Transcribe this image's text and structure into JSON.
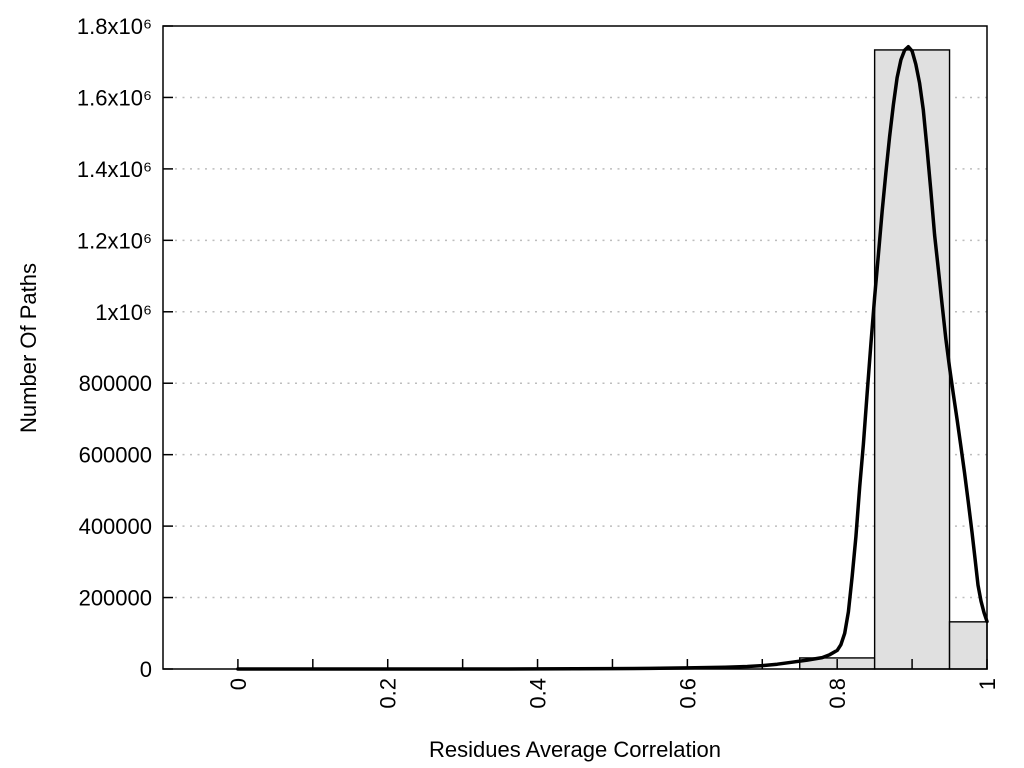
{
  "chart_data": {
    "type": "bar",
    "subtype": "histogram-with-smooth-curve",
    "title": "",
    "xlabel": "Residues Average Correlation",
    "ylabel": "Number Of Paths",
    "xlim": [
      -0.1,
      1.0
    ],
    "ylim": [
      0,
      1800000
    ],
    "grid": "horizontal-dotted",
    "legend": "none",
    "colors": {
      "background": "#ffffff",
      "bar_fill": "#e0e0e0",
      "bar_stroke": "#000000",
      "curve": "#000000",
      "grid": "#bdbdbd",
      "axis": "#000000",
      "text": "#000000"
    },
    "x_ticks": [
      {
        "v": 0.0,
        "label": "0"
      },
      {
        "v": 0.1,
        "label": ""
      },
      {
        "v": 0.2,
        "label": "0.2"
      },
      {
        "v": 0.3,
        "label": ""
      },
      {
        "v": 0.4,
        "label": "0.4"
      },
      {
        "v": 0.5,
        "label": ""
      },
      {
        "v": 0.6,
        "label": "0.6"
      },
      {
        "v": 0.7,
        "label": ""
      },
      {
        "v": 0.8,
        "label": "0.8"
      },
      {
        "v": 0.9,
        "label": ""
      },
      {
        "v": 1.0,
        "label": "1"
      }
    ],
    "y_ticks": [
      {
        "v": 0,
        "label": "0"
      },
      {
        "v": 200000,
        "label": "200000"
      },
      {
        "v": 400000,
        "label": "400000"
      },
      {
        "v": 600000,
        "label": "600000"
      },
      {
        "v": 800000,
        "label": "800000"
      },
      {
        "v": 1000000,
        "label": "1x10⁶"
      },
      {
        "v": 1200000,
        "label": "1.2x10⁶"
      },
      {
        "v": 1400000,
        "label": "1.4x10⁶"
      },
      {
        "v": 1600000,
        "label": "1.6x10⁶"
      },
      {
        "v": 1800000,
        "label": "1.8x10⁶"
      }
    ],
    "bars": [
      {
        "x0": 0.75,
        "x1": 0.85,
        "value": 31000
      },
      {
        "x0": 0.85,
        "x1": 0.95,
        "value": 1733000
      },
      {
        "x0": 0.95,
        "x1": 1.0,
        "value": 132000
      }
    ],
    "curve": [
      [
        0.0,
        0
      ],
      [
        0.05,
        0
      ],
      [
        0.1,
        0
      ],
      [
        0.15,
        0
      ],
      [
        0.2,
        0
      ],
      [
        0.25,
        0
      ],
      [
        0.3,
        0
      ],
      [
        0.35,
        100
      ],
      [
        0.4,
        300
      ],
      [
        0.45,
        600
      ],
      [
        0.5,
        1100
      ],
      [
        0.55,
        1800
      ],
      [
        0.6,
        3000
      ],
      [
        0.65,
        5000
      ],
      [
        0.68,
        7000
      ],
      [
        0.7,
        9500
      ],
      [
        0.72,
        13500
      ],
      [
        0.74,
        19000
      ],
      [
        0.76,
        25000
      ],
      [
        0.78,
        32000
      ],
      [
        0.79,
        40000
      ],
      [
        0.8,
        52000
      ],
      [
        0.805,
        68000
      ],
      [
        0.81,
        100000
      ],
      [
        0.815,
        160000
      ],
      [
        0.82,
        260000
      ],
      [
        0.825,
        370000
      ],
      [
        0.83,
        510000
      ],
      [
        0.835,
        630000
      ],
      [
        0.84,
        770000
      ],
      [
        0.845,
        910000
      ],
      [
        0.85,
        1040000
      ],
      [
        0.855,
        1160000
      ],
      [
        0.86,
        1280000
      ],
      [
        0.865,
        1390000
      ],
      [
        0.87,
        1490000
      ],
      [
        0.875,
        1580000
      ],
      [
        0.88,
        1655000
      ],
      [
        0.885,
        1705000
      ],
      [
        0.89,
        1732000
      ],
      [
        0.895,
        1742000
      ],
      [
        0.9,
        1730000
      ],
      [
        0.905,
        1693000
      ],
      [
        0.91,
        1640000
      ],
      [
        0.915,
        1565000
      ],
      [
        0.92,
        1455000
      ],
      [
        0.925,
        1340000
      ],
      [
        0.93,
        1215000
      ],
      [
        0.935,
        1120000
      ],
      [
        0.94,
        1020000
      ],
      [
        0.945,
        925000
      ],
      [
        0.95,
        845000
      ],
      [
        0.955,
        770000
      ],
      [
        0.96,
        700000
      ],
      [
        0.965,
        625000
      ],
      [
        0.97,
        550000
      ],
      [
        0.975,
        467000
      ],
      [
        0.98,
        383000
      ],
      [
        0.984,
        310000
      ],
      [
        0.988,
        235000
      ],
      [
        0.992,
        190000
      ],
      [
        0.996,
        158000
      ],
      [
        1.0,
        133000
      ]
    ]
  }
}
